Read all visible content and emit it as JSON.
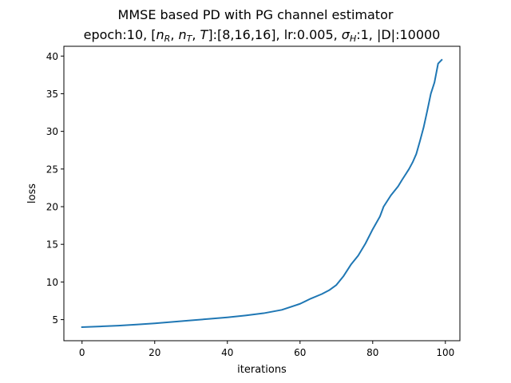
{
  "chart_data": {
    "type": "line",
    "title": "MMSE based PD with PG channel estimator",
    "subtitle": "epoch:10, [n_R, n_T, T]:[8,16,16], lr:0.005, σ_H:1, |D|:10000",
    "xlabel": "iterations",
    "ylabel": "loss",
    "xlim": [
      -5,
      104
    ],
    "ylim": [
      2.2,
      41.3
    ],
    "x_ticks": [
      0,
      20,
      40,
      60,
      80,
      100
    ],
    "y_ticks": [
      5,
      10,
      15,
      20,
      25,
      30,
      35,
      40
    ],
    "grid": false,
    "series": [
      {
        "color": "#1f77b4",
        "x": [
          0,
          5,
          10,
          15,
          20,
          25,
          30,
          35,
          40,
          45,
          50,
          55,
          60,
          63,
          66,
          68,
          70,
          72,
          74,
          76,
          78,
          80,
          82,
          83,
          85,
          87,
          88,
          90,
          91,
          92,
          93,
          94,
          95,
          96,
          97,
          98,
          99
        ],
        "y": [
          4.0,
          4.1,
          4.2,
          4.35,
          4.5,
          4.7,
          4.9,
          5.1,
          5.3,
          5.55,
          5.85,
          6.3,
          7.1,
          7.8,
          8.4,
          8.9,
          9.6,
          10.8,
          12.3,
          13.5,
          15.1,
          17.0,
          18.7,
          20.0,
          21.5,
          22.7,
          23.5,
          25.0,
          25.9,
          27.0,
          28.7,
          30.5,
          32.7,
          35.0,
          36.5,
          39.0,
          39.5
        ]
      }
    ]
  }
}
